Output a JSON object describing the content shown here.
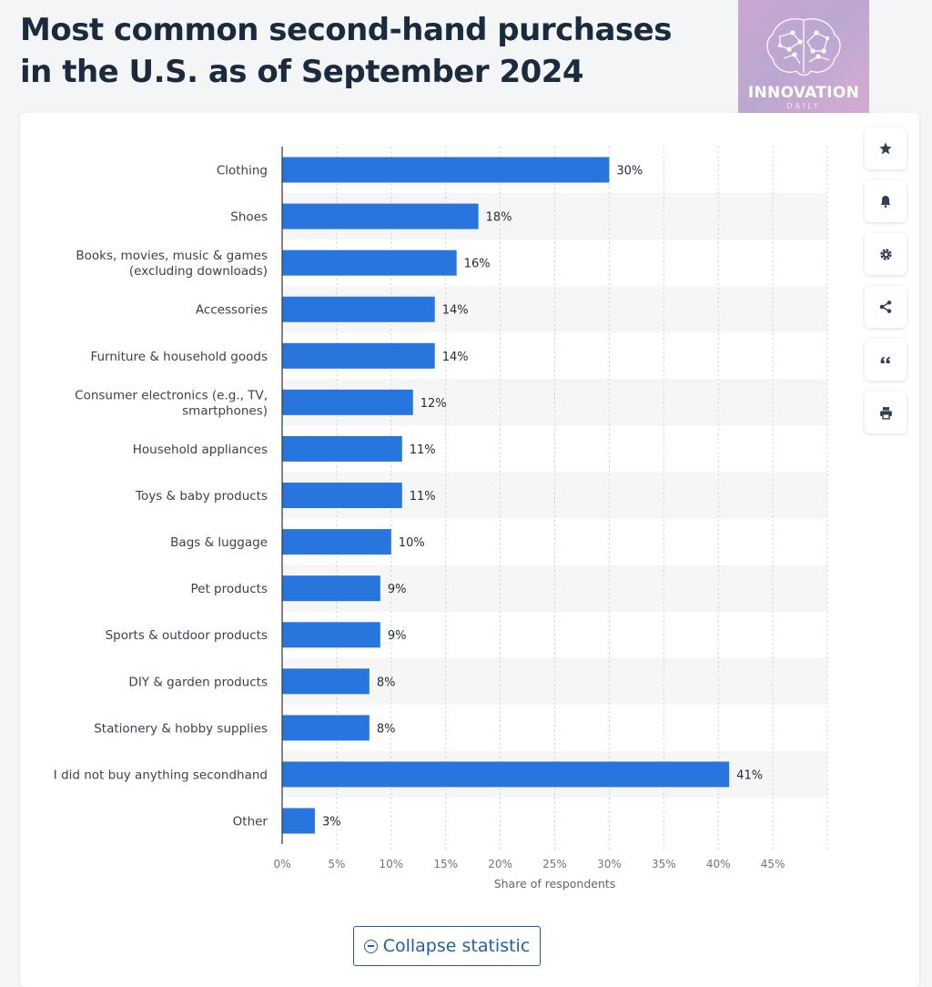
{
  "page": {
    "title": "Most common second-hand purchases in the U.S. as of September 2024"
  },
  "logo": {
    "brand": "INNOVATION",
    "sub": "DAILY"
  },
  "tools": [
    {
      "name": "favorite-icon"
    },
    {
      "name": "bell-icon"
    },
    {
      "name": "gear-icon"
    },
    {
      "name": "share-icon"
    },
    {
      "name": "quote-icon"
    },
    {
      "name": "print-icon"
    }
  ],
  "collapse_label": "Collapse statistic",
  "colors": {
    "bar": "#2876dd",
    "band": "#f6f6f6",
    "grid": "#cfcfcf"
  },
  "chart_data": {
    "type": "bar",
    "orientation": "horizontal",
    "categories": [
      "Clothing",
      "Shoes",
      "Books, movies, music & games (excluding downloads)",
      "Accessories",
      "Furniture & household goods",
      "Consumer electronics (e.g., TV, smartphones)",
      "Household appliances",
      "Toys & baby products",
      "Bags & luggage",
      "Pet products",
      "Sports & outdoor products",
      "DIY & garden products",
      "Stationery & hobby supplies",
      "I did not buy anything secondhand",
      "Other"
    ],
    "category_lines": [
      [
        "Clothing"
      ],
      [
        "Shoes"
      ],
      [
        "Books, movies, music & games",
        "(excluding downloads)"
      ],
      [
        "Accessories"
      ],
      [
        "Furniture & household goods"
      ],
      [
        "Consumer electronics (e.g., TV,",
        "smartphones)"
      ],
      [
        "Household appliances"
      ],
      [
        "Toys & baby products"
      ],
      [
        "Bags & luggage"
      ],
      [
        "Pet products"
      ],
      [
        "Sports & outdoor products"
      ],
      [
        "DIY & garden products"
      ],
      [
        "Stationery & hobby supplies"
      ],
      [
        "I did not buy anything secondhand"
      ],
      [
        "Other"
      ]
    ],
    "values": [
      30,
      18,
      16,
      14,
      14,
      12,
      11,
      11,
      10,
      9,
      9,
      8,
      8,
      41,
      3
    ],
    "value_labels": [
      "30%",
      "18%",
      "16%",
      "14%",
      "14%",
      "12%",
      "11%",
      "11%",
      "10%",
      "9%",
      "9%",
      "8%",
      "8%",
      "41%",
      "3%"
    ],
    "xlim": [
      0,
      50
    ],
    "ticks": [
      0,
      5,
      10,
      15,
      20,
      25,
      30,
      35,
      40,
      45
    ],
    "tick_labels": [
      "0%",
      "5%",
      "10%",
      "15%",
      "20%",
      "25%",
      "30%",
      "35%",
      "40%",
      "45%"
    ],
    "xlabel": "Share of respondents",
    "grid": true
  }
}
